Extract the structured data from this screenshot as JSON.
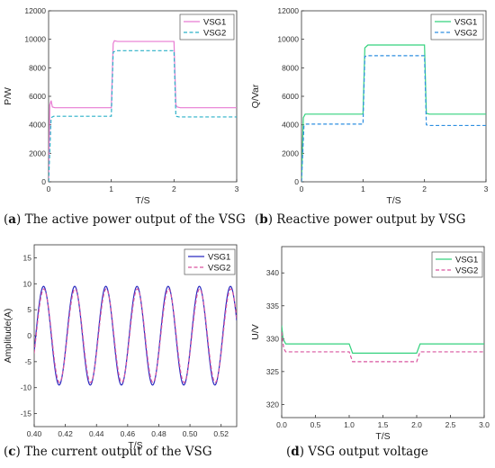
{
  "charts": [
    {
      "caption": {
        "label": "a",
        "text": "The active power output of the VSG"
      },
      "chart_data": {
        "type": "line",
        "xlabel": "T/S",
        "ylabel": "P/W",
        "xlim": [
          0,
          3
        ],
        "ylim": [
          0,
          12000
        ],
        "xticks": [
          0,
          1,
          2,
          3
        ],
        "yticks": [
          0,
          2000,
          4000,
          6000,
          8000,
          10000,
          12000
        ],
        "legend_position": "top-right",
        "series": [
          {
            "name": "VSG1",
            "color": "#e87bd2",
            "dash": "solid",
            "x": [
              0,
              0.02,
              0.04,
              0.06,
              0.1,
              1.0,
              1.03,
              1.05,
              1.1,
              2.0,
              2.03,
              2.05,
              2.1,
              3.0
            ],
            "y": [
              0,
              5400,
              5700,
              5250,
              5200,
              5200,
              9700,
              9900,
              9850,
              9850,
              5400,
              5250,
              5200,
              5200
            ]
          },
          {
            "name": "VSG2",
            "color": "#2bb0c8",
            "dash": "dashed",
            "x": [
              0,
              0.04,
              0.08,
              1.0,
              1.03,
              1.08,
              2.0,
              2.03,
              2.08,
              3.0
            ],
            "y": [
              0,
              4500,
              4600,
              4600,
              9100,
              9200,
              9200,
              4600,
              4550,
              4550
            ]
          }
        ]
      }
    },
    {
      "caption": {
        "label": "b",
        "text": "Reactive power output by VSG"
      },
      "chart_data": {
        "type": "line",
        "xlabel": "T/S",
        "ylabel": "Q/Var",
        "xlim": [
          0,
          3
        ],
        "ylim": [
          0,
          12000
        ],
        "xticks": [
          0,
          1,
          2,
          3
        ],
        "yticks": [
          0,
          2000,
          4000,
          6000,
          8000,
          10000,
          12000
        ],
        "legend_position": "top-right",
        "series": [
          {
            "name": "VSG1",
            "color": "#34d27e",
            "dash": "solid",
            "x": [
              0,
              0.03,
              0.06,
              0.1,
              1.0,
              1.03,
              1.08,
              2.0,
              2.03,
              2.08,
              3.0
            ],
            "y": [
              0,
              4500,
              4750,
              4750,
              4750,
              9400,
              9600,
              9600,
              4800,
              4750,
              4750
            ]
          },
          {
            "name": "VSG2",
            "color": "#2e8fe0",
            "dash": "dashed",
            "x": [
              0,
              0.04,
              0.08,
              1.0,
              1.03,
              1.08,
              2.0,
              2.03,
              2.08,
              3.0
            ],
            "y": [
              0,
              3950,
              4050,
              4050,
              8800,
              8850,
              8850,
              4000,
              3950,
              3950
            ]
          }
        ]
      }
    },
    {
      "caption": {
        "label": "c",
        "text": "The current output of the VSG"
      },
      "chart_data": {
        "type": "line",
        "xlabel": "T/S",
        "ylabel": "Amplitude(A)",
        "xlim": [
          0.4,
          0.53
        ],
        "ylim": [
          -17.5,
          17.5
        ],
        "xticks": [
          0.4,
          0.42,
          0.44,
          0.46,
          0.48,
          0.5,
          0.52
        ],
        "xtick_labels": [
          "0.40",
          "0.42",
          "0.44",
          "0.46",
          "0.48",
          "0.50",
          "0.52"
        ],
        "yticks": [
          -15,
          -10,
          -5,
          0,
          5,
          10,
          15
        ],
        "legend_position": "top-right",
        "series": [
          {
            "name": "VSG1",
            "color": "#2b2bc0",
            "dash": "solid",
            "function": "sine",
            "amplitude": 9.5,
            "frequency_hz": 50,
            "phase_deg": -18
          },
          {
            "name": "VSG2",
            "color": "#d9559f",
            "dash": "dashed",
            "function": "sine",
            "amplitude": 9.0,
            "frequency_hz": 50,
            "phase_deg": -22
          }
        ]
      }
    },
    {
      "caption": {
        "label": "d",
        "text": "VSG output voltage"
      },
      "chart_data": {
        "type": "line",
        "xlabel": "T/S",
        "ylabel": "U/V",
        "xlim": [
          0,
          3
        ],
        "ylim": [
          318,
          344
        ],
        "xticks": [
          0,
          0.5,
          1,
          1.5,
          2,
          2.5,
          3
        ],
        "xtick_labels": [
          "0.0",
          "0.5",
          "1.0",
          "1.5",
          "2.0",
          "2.5",
          "3.0"
        ],
        "yticks": [
          320,
          325,
          330,
          335,
          340
        ],
        "legend_position": "top-right",
        "series": [
          {
            "name": "VSG1",
            "color": "#34d27e",
            "dash": "solid",
            "x": [
              0,
              0.02,
              0.06,
              1.0,
              1.05,
              2.0,
              2.05,
              3.0
            ],
            "y": [
              332,
              330,
              329.2,
              329.2,
              327.8,
              327.8,
              329.2,
              329.2
            ]
          },
          {
            "name": "VSG2",
            "color": "#d9559f",
            "dash": "dashed",
            "x": [
              0,
              0.03,
              0.06,
              1.0,
              1.05,
              2.0,
              2.05,
              3.0
            ],
            "y": [
              331,
              328.5,
              328,
              328,
              326.5,
              326.5,
              328,
              328
            ]
          }
        ]
      }
    }
  ]
}
